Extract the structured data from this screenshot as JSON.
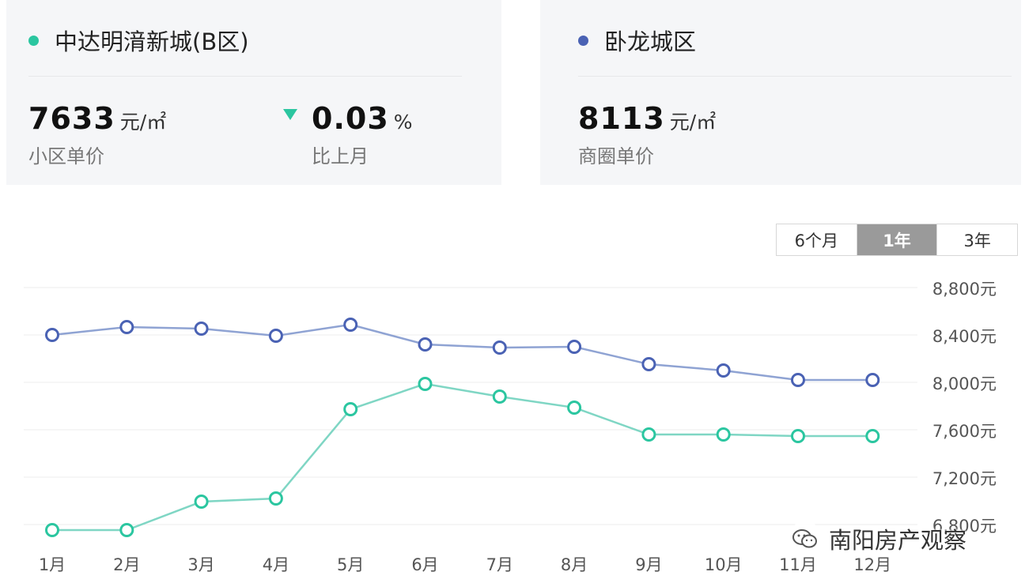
{
  "cards": {
    "left": {
      "title": "中达明湇新城(B区)",
      "dot_color": "#2bc6a0",
      "price": "7633",
      "price_unit": "元/㎡",
      "price_label": "小区单价",
      "change": "0.03",
      "change_unit": "%",
      "change_label": "比上月",
      "change_direction": "down"
    },
    "right": {
      "title": "卧龙城区",
      "dot_color": "#4a62b4",
      "price": "8113",
      "price_unit": "元/㎡",
      "price_label": "商圈单价"
    }
  },
  "range_toggle": {
    "options": [
      "6个月",
      "1年",
      "3年"
    ],
    "selected": "1年"
  },
  "watermark": {
    "icon": "wechat-icon",
    "text": "南阳房产观察"
  },
  "chart_data": {
    "type": "line",
    "categories": [
      "1月",
      "2月",
      "3月",
      "4月",
      "5月",
      "6月",
      "7月",
      "8月",
      "9月",
      "10月",
      "11月",
      "12月"
    ],
    "series": [
      {
        "name": "卧龙城区",
        "color": "#4a62b4",
        "line_color": "#8fa3d3",
        "values": [
          8400,
          8467,
          8453,
          8393,
          8487,
          8320,
          8293,
          8300,
          8153,
          8100,
          8020,
          8020
        ]
      },
      {
        "name": "中达明湇新城(B区)",
        "color": "#2bc6a0",
        "line_color": "#7fd6c4",
        "values": [
          6753,
          6753,
          6993,
          7020,
          7773,
          7987,
          7880,
          7787,
          7560,
          7560,
          7547,
          7547
        ]
      }
    ],
    "yticks": [
      6800,
      7200,
      7600,
      8000,
      8400,
      8800
    ],
    "ytick_labels": [
      "6,800元",
      "7,200元",
      "7,600元",
      "8,000元",
      "8,400元",
      "8,800元"
    ],
    "ylim": [
      6800,
      8800
    ],
    "grid": true,
    "xlabel": "",
    "ylabel": ""
  }
}
